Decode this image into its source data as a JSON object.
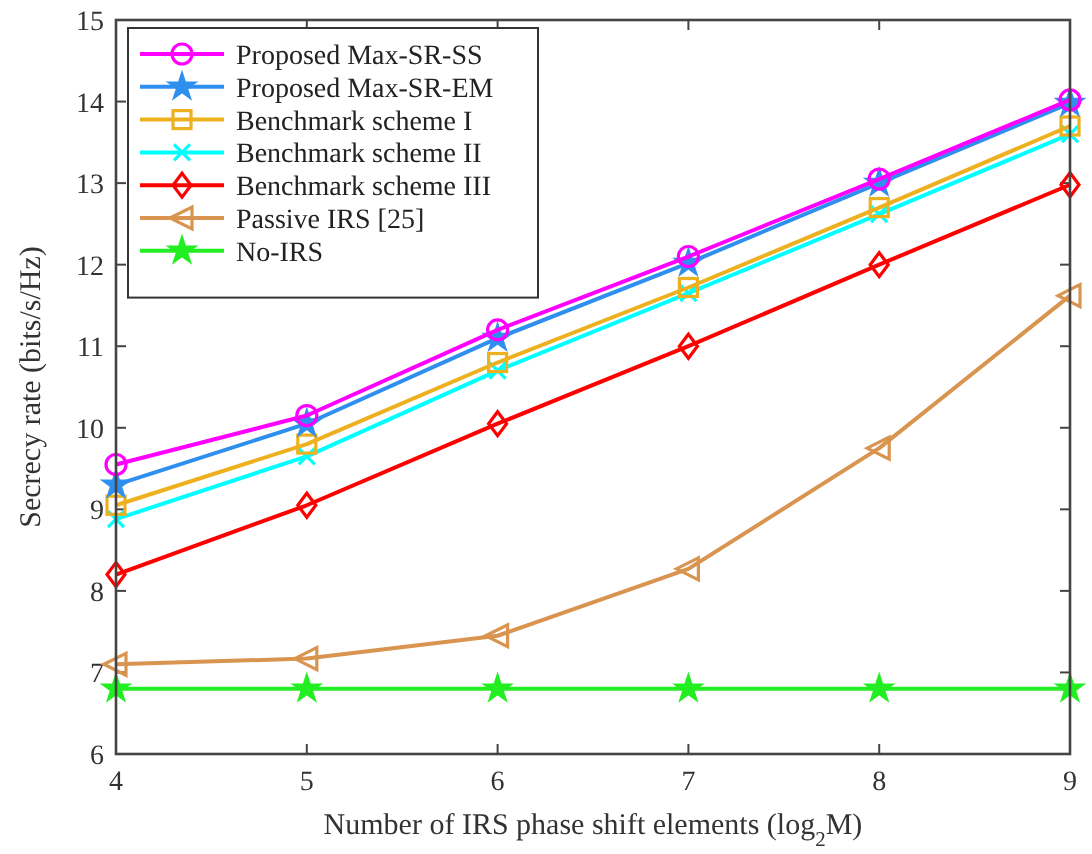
{
  "chart_data": {
    "type": "line",
    "xlabel": "Number of IRS phase shift elements (log$_{2}$M)",
    "ylabel": "Secrecy rate (bits/s/Hz)",
    "x": [
      4,
      5,
      6,
      7,
      8,
      9
    ],
    "xlim": [
      4,
      9
    ],
    "xticks": [
      4,
      5,
      6,
      7,
      8,
      9
    ],
    "ylim": [
      6,
      15
    ],
    "yticks": [
      6,
      7,
      8,
      9,
      10,
      11,
      12,
      13,
      14,
      15
    ],
    "grid": false,
    "legend": "top left",
    "series": [
      {
        "name": "Proposed Max-SR-SS",
        "color": "#ff00ff",
        "marker": "circle",
        "values": [
          9.55,
          10.15,
          11.2,
          12.1,
          13.05,
          14.02
        ]
      },
      {
        "name": "Proposed Max-SR-EM",
        "color": "#2f8fef",
        "marker": "star",
        "values": [
          9.3,
          10.05,
          11.1,
          12.02,
          13.0,
          13.98
        ]
      },
      {
        "name": "Benchmark scheme I",
        "color": "#edb120",
        "marker": "square",
        "values": [
          9.05,
          9.8,
          10.8,
          11.72,
          12.7,
          13.7
        ]
      },
      {
        "name": "Benchmark scheme II",
        "color": "#00ffff",
        "marker": "cross",
        "values": [
          8.88,
          9.65,
          10.7,
          11.65,
          12.62,
          13.6
        ]
      },
      {
        "name": "Benchmark scheme III",
        "color": "#ff0000",
        "marker": "diamond",
        "values": [
          8.2,
          9.05,
          10.05,
          11.0,
          12.0,
          12.98
        ]
      },
      {
        "name": "Passive IRS [25]",
        "color": "#d9944f",
        "marker": "triangle",
        "values": [
          7.1,
          7.17,
          7.45,
          8.27,
          9.75,
          11.62
        ]
      },
      {
        "name": "No-IRS",
        "color": "#22ee22",
        "marker": "star",
        "values": [
          6.8,
          6.8,
          6.8,
          6.8,
          6.8,
          6.8
        ]
      }
    ]
  }
}
